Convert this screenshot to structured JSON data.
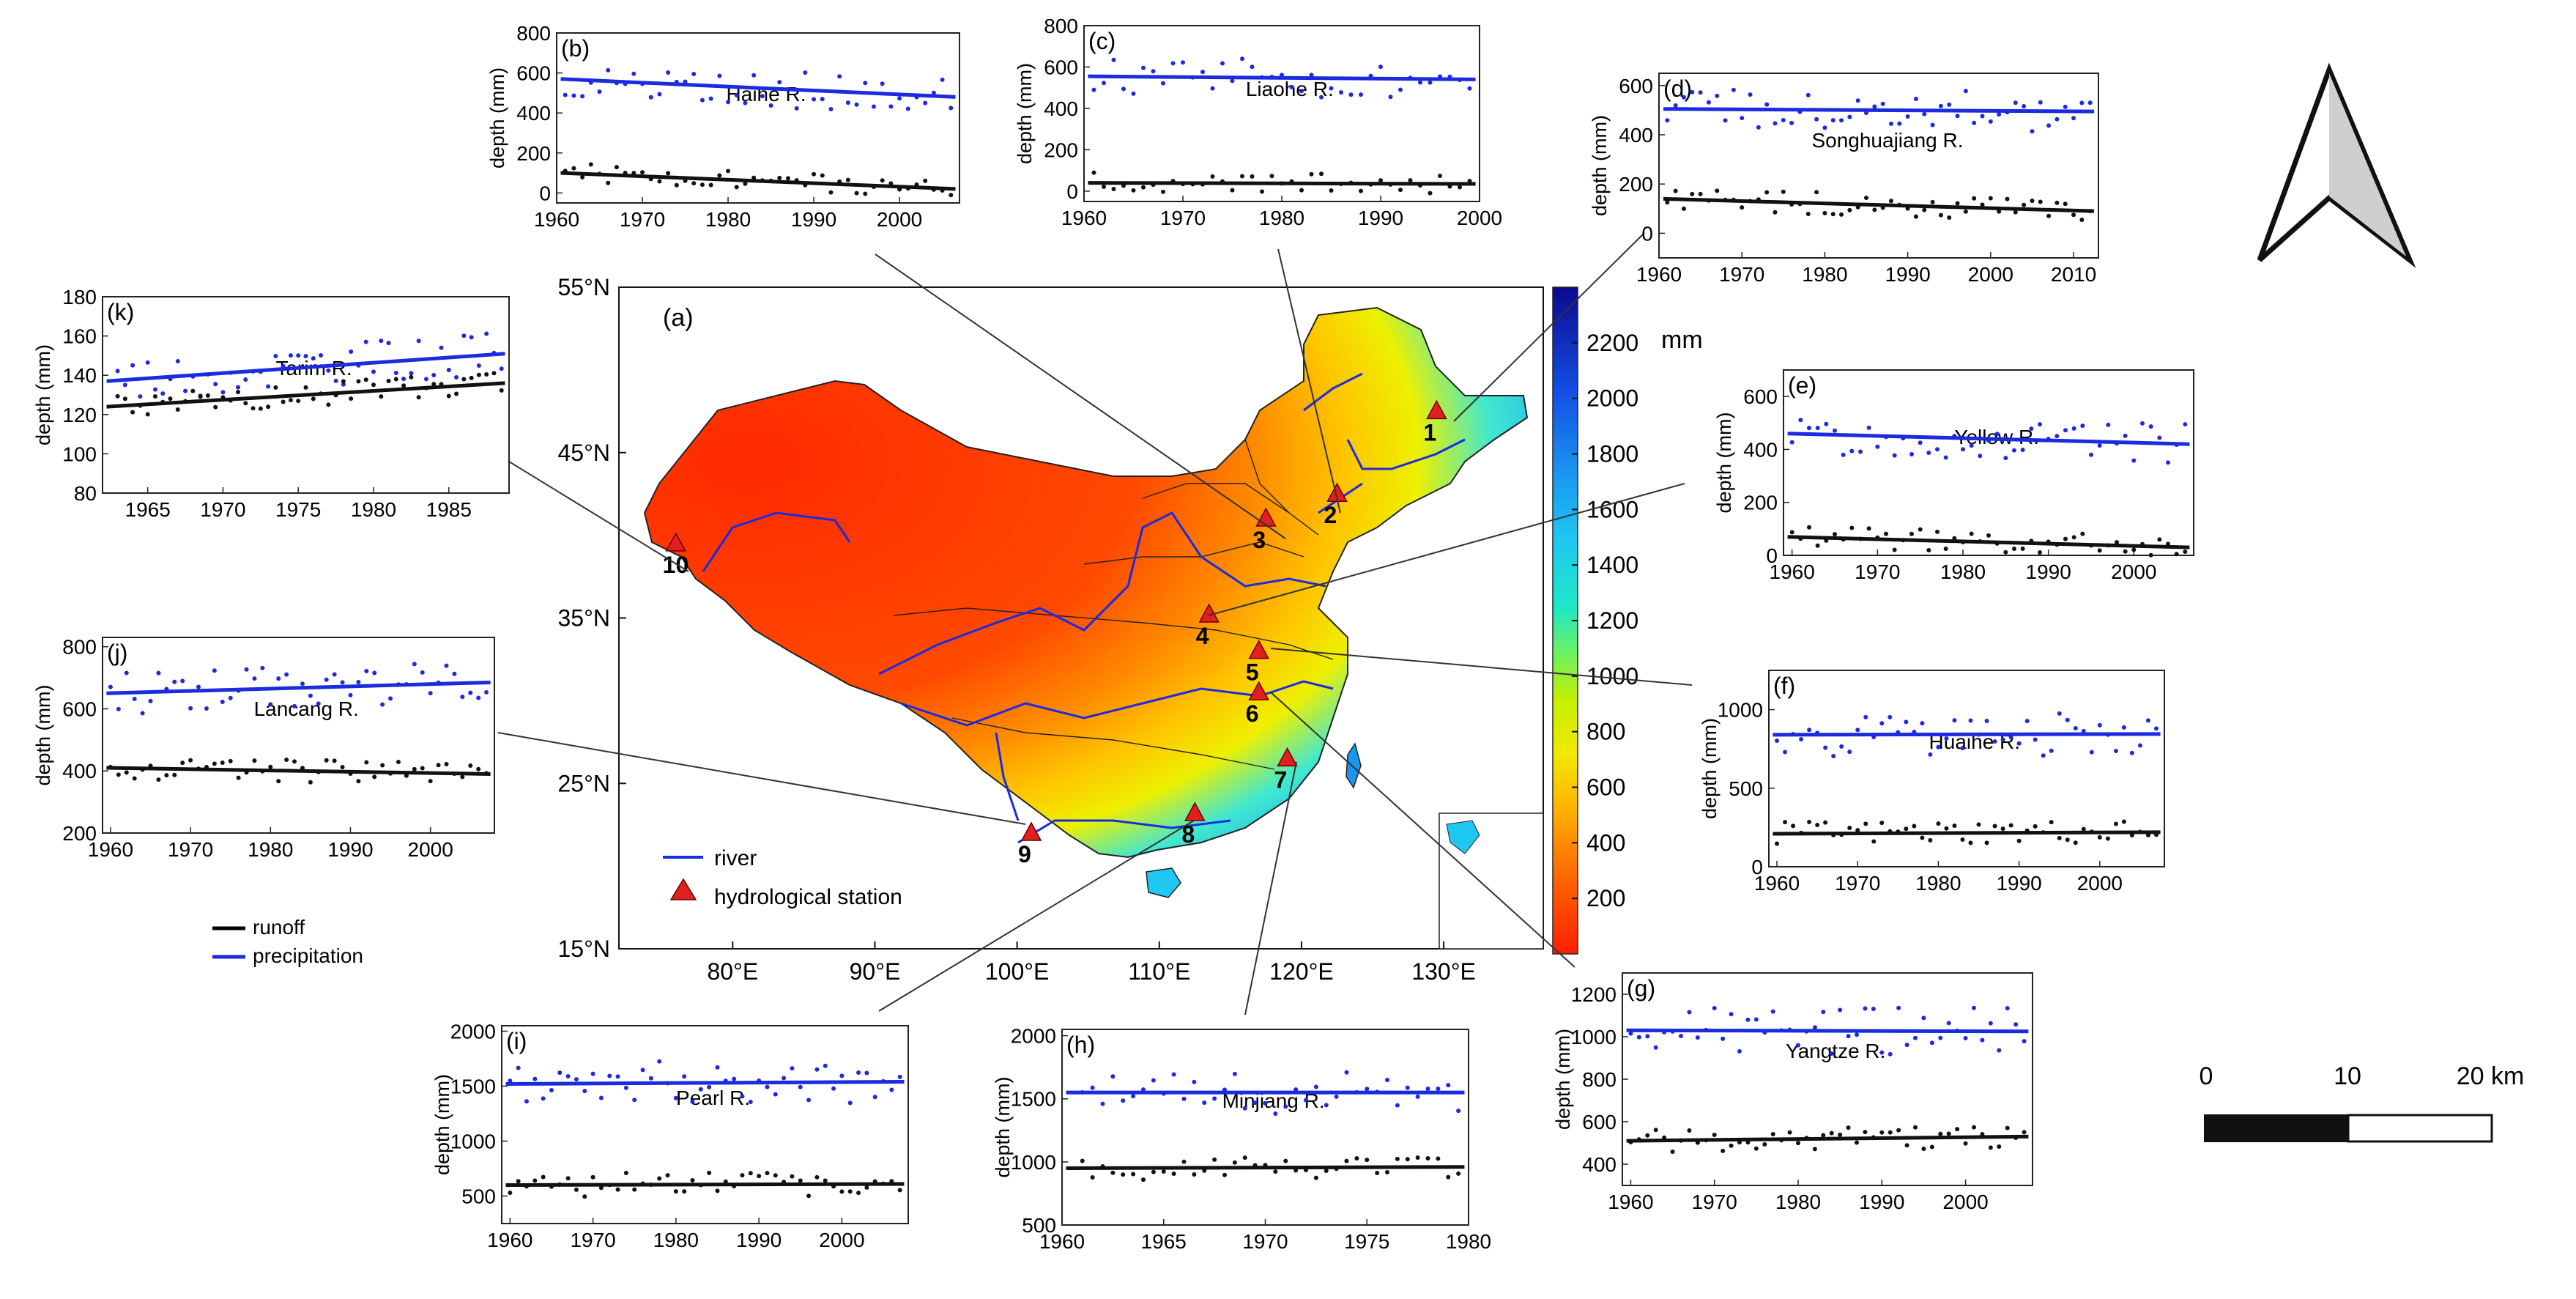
{
  "chart_data": {
    "type": "composite-map",
    "main_map": {
      "panel_label": "(a)",
      "lat_ticks": [
        "55°N",
        "45°N",
        "35°N",
        "25°N",
        "15°N"
      ],
      "lon_ticks": [
        "80°E",
        "90°E",
        "100°E",
        "110°E",
        "120°E",
        "130°E"
      ],
      "colorbar": {
        "unit": "mm",
        "ticks": [
          "2200",
          "2000",
          "1800",
          "1600",
          "1400",
          "1200",
          "1000",
          "800",
          "600",
          "400",
          "200"
        ],
        "range": [
          0,
          2400
        ]
      },
      "legend": {
        "river": "river",
        "station": "hydrological station"
      },
      "stations": [
        {
          "id": "1",
          "lon": 129.5,
          "lat": 47.5
        },
        {
          "id": "2",
          "lon": 122.5,
          "lat": 42.5
        },
        {
          "id": "3",
          "lon": 117.5,
          "lat": 41.0
        },
        {
          "id": "4",
          "lon": 113.5,
          "lat": 35.2
        },
        {
          "id": "5",
          "lon": 117.0,
          "lat": 33.0
        },
        {
          "id": "6",
          "lon": 117.0,
          "lat": 30.5
        },
        {
          "id": "7",
          "lon": 119.0,
          "lat": 26.5
        },
        {
          "id": "8",
          "lon": 112.5,
          "lat": 23.2
        },
        {
          "id": "9",
          "lon": 101.0,
          "lat": 22.0
        },
        {
          "id": "10",
          "lon": 76.0,
          "lat": 39.5
        }
      ]
    },
    "legend": {
      "runoff": "runoff",
      "precipitation": "precipitation"
    },
    "scale_bar": {
      "labels": [
        "0",
        "10",
        "20 km"
      ]
    },
    "panels": [
      {
        "id": "b",
        "label": "(b)",
        "title": "Haihe R.",
        "ylabel": "depth (mm)",
        "xlim": [
          1960,
          2007
        ],
        "ylim": [
          -50,
          800
        ],
        "xticks": [
          1960,
          1970,
          1980,
          1990,
          2000
        ],
        "yticks": [
          0,
          200,
          400,
          600,
          800
        ],
        "precip_trend": [
          570,
          480
        ],
        "runoff_trend": [
          100,
          20
        ]
      },
      {
        "id": "c",
        "label": "(c)",
        "title": "Liaohe R.",
        "ylabel": "depth (mm)",
        "xlim": [
          1960,
          2000
        ],
        "ylim": [
          -50,
          800
        ],
        "xticks": [
          1960,
          1970,
          1980,
          1990,
          2000
        ],
        "yticks": [
          0,
          200,
          400,
          600,
          800
        ],
        "precip_trend": [
          555,
          540
        ],
        "runoff_trend": [
          40,
          35
        ]
      },
      {
        "id": "d",
        "label": "(d)",
        "title": "Songhuajiang R.",
        "ylabel": "depth (mm)",
        "xlim": [
          1960,
          2013
        ],
        "ylim": [
          -100,
          650
        ],
        "xticks": [
          1960,
          1970,
          1980,
          1990,
          2000,
          2010
        ],
        "yticks": [
          0,
          200,
          400,
          600
        ],
        "precip_trend": [
          505,
          495
        ],
        "runoff_trend": [
          140,
          90
        ]
      },
      {
        "id": "e",
        "label": "(e)",
        "title": "Yellow R.",
        "ylabel": "depth (mm)",
        "xlim": [
          1959,
          2007
        ],
        "ylim": [
          0,
          700
        ],
        "xticks": [
          1960,
          1970,
          1980,
          1990,
          2000
        ],
        "yticks": [
          0,
          200,
          400,
          600
        ],
        "precip_trend": [
          460,
          420
        ],
        "runoff_trend": [
          70,
          30
        ]
      },
      {
        "id": "f",
        "label": "(f)",
        "title": "Huaihe R.",
        "ylabel": "depth (mm)",
        "xlim": [
          1959,
          2008
        ],
        "ylim": [
          0,
          1250
        ],
        "xticks": [
          1960,
          1970,
          1980,
          1990,
          2000
        ],
        "yticks": [
          0,
          500,
          1000
        ],
        "precip_trend": [
          840,
          845
        ],
        "runoff_trend": [
          210,
          220
        ]
      },
      {
        "id": "g",
        "label": "(g)",
        "title": "Yangtze R.",
        "ylabel": "depth (mm)",
        "xlim": [
          1959,
          2008
        ],
        "ylim": [
          300,
          1300
        ],
        "xticks": [
          1960,
          1970,
          1980,
          1990,
          2000
        ],
        "yticks": [
          400,
          600,
          800,
          1000,
          1200
        ],
        "precip_trend": [
          1030,
          1025
        ],
        "runoff_trend": [
          510,
          530
        ]
      },
      {
        "id": "h",
        "label": "(h)",
        "title": "Minjiang R.",
        "ylabel": "depth (mm)",
        "xlim": [
          1960,
          1980
        ],
        "ylim": [
          500,
          2050
        ],
        "xticks": [
          1960,
          1965,
          1970,
          1975,
          1980
        ],
        "yticks": [
          500,
          1000,
          1500,
          2000
        ],
        "precip_trend": [
          1550,
          1550
        ],
        "runoff_trend": [
          950,
          960
        ]
      },
      {
        "id": "i",
        "label": "(i)",
        "title": "Pearl R.",
        "ylabel": "depth (mm)",
        "xlim": [
          1959,
          2008
        ],
        "ylim": [
          250,
          2050
        ],
        "xticks": [
          1960,
          1970,
          1980,
          1990,
          2000
        ],
        "yticks": [
          500,
          1000,
          1500,
          2000
        ],
        "precip_trend": [
          1520,
          1540
        ],
        "runoff_trend": [
          600,
          610
        ]
      },
      {
        "id": "j",
        "label": "(j)",
        "title": "Lancang R.",
        "ylabel": "depth (mm)",
        "xlim": [
          1959,
          2008
        ],
        "ylim": [
          200,
          830
        ],
        "xticks": [
          1960,
          1970,
          1980,
          1990,
          2000
        ],
        "yticks": [
          200,
          400,
          600,
          800
        ],
        "precip_trend": [
          650,
          685
        ],
        "runoff_trend": [
          410,
          390
        ]
      },
      {
        "id": "k",
        "label": "(k)",
        "title": "Tarim R.",
        "ylabel": "depth (mm)",
        "xlim": [
          1962,
          1989
        ],
        "ylim": [
          80,
          180
        ],
        "xticks": [
          1965,
          1970,
          1975,
          1980,
          1985
        ],
        "yticks": [
          80,
          100,
          120,
          140,
          160,
          180
        ],
        "precip_trend": [
          137,
          151
        ],
        "runoff_trend": [
          124,
          136
        ]
      }
    ]
  }
}
